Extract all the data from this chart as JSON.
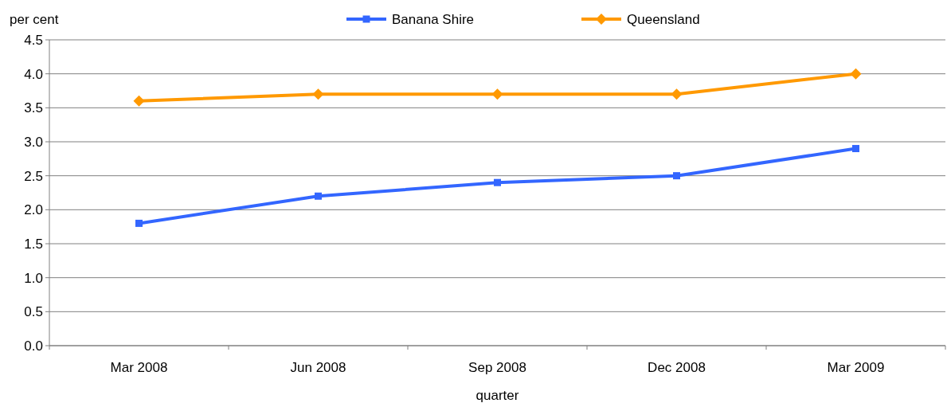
{
  "chart_data": {
    "type": "line",
    "ylabel": "per cent",
    "xlabel": "quarter",
    "categories": [
      "Mar 2008",
      "Jun 2008",
      "Sep 2008",
      "Dec 2008",
      "Mar 2009"
    ],
    "series": [
      {
        "name": "Banana Shire",
        "color": "#3366ff",
        "marker": "square",
        "values": [
          1.8,
          2.2,
          2.4,
          2.5,
          2.9
        ]
      },
      {
        "name": "Queensland",
        "color": "#ff9900",
        "marker": "diamond",
        "values": [
          3.6,
          3.7,
          3.7,
          3.7,
          4.0
        ]
      }
    ],
    "ylim": [
      0,
      4.5
    ],
    "yticks": [
      {
        "value": 0,
        "label": "0.0"
      },
      {
        "value": 0.5,
        "label": "0.5"
      },
      {
        "value": 1,
        "label": "1.0"
      },
      {
        "value": 1.5,
        "label": "1.5"
      },
      {
        "value": 2,
        "label": "2.0"
      },
      {
        "value": 2.5,
        "label": "2.5"
      },
      {
        "value": 3,
        "label": "3.0"
      },
      {
        "value": 3.5,
        "label": "3.5"
      },
      {
        "value": 4,
        "label": "4.0"
      },
      {
        "value": 4.5,
        "label": "4.5"
      }
    ],
    "grid": "y",
    "legend": "top"
  }
}
